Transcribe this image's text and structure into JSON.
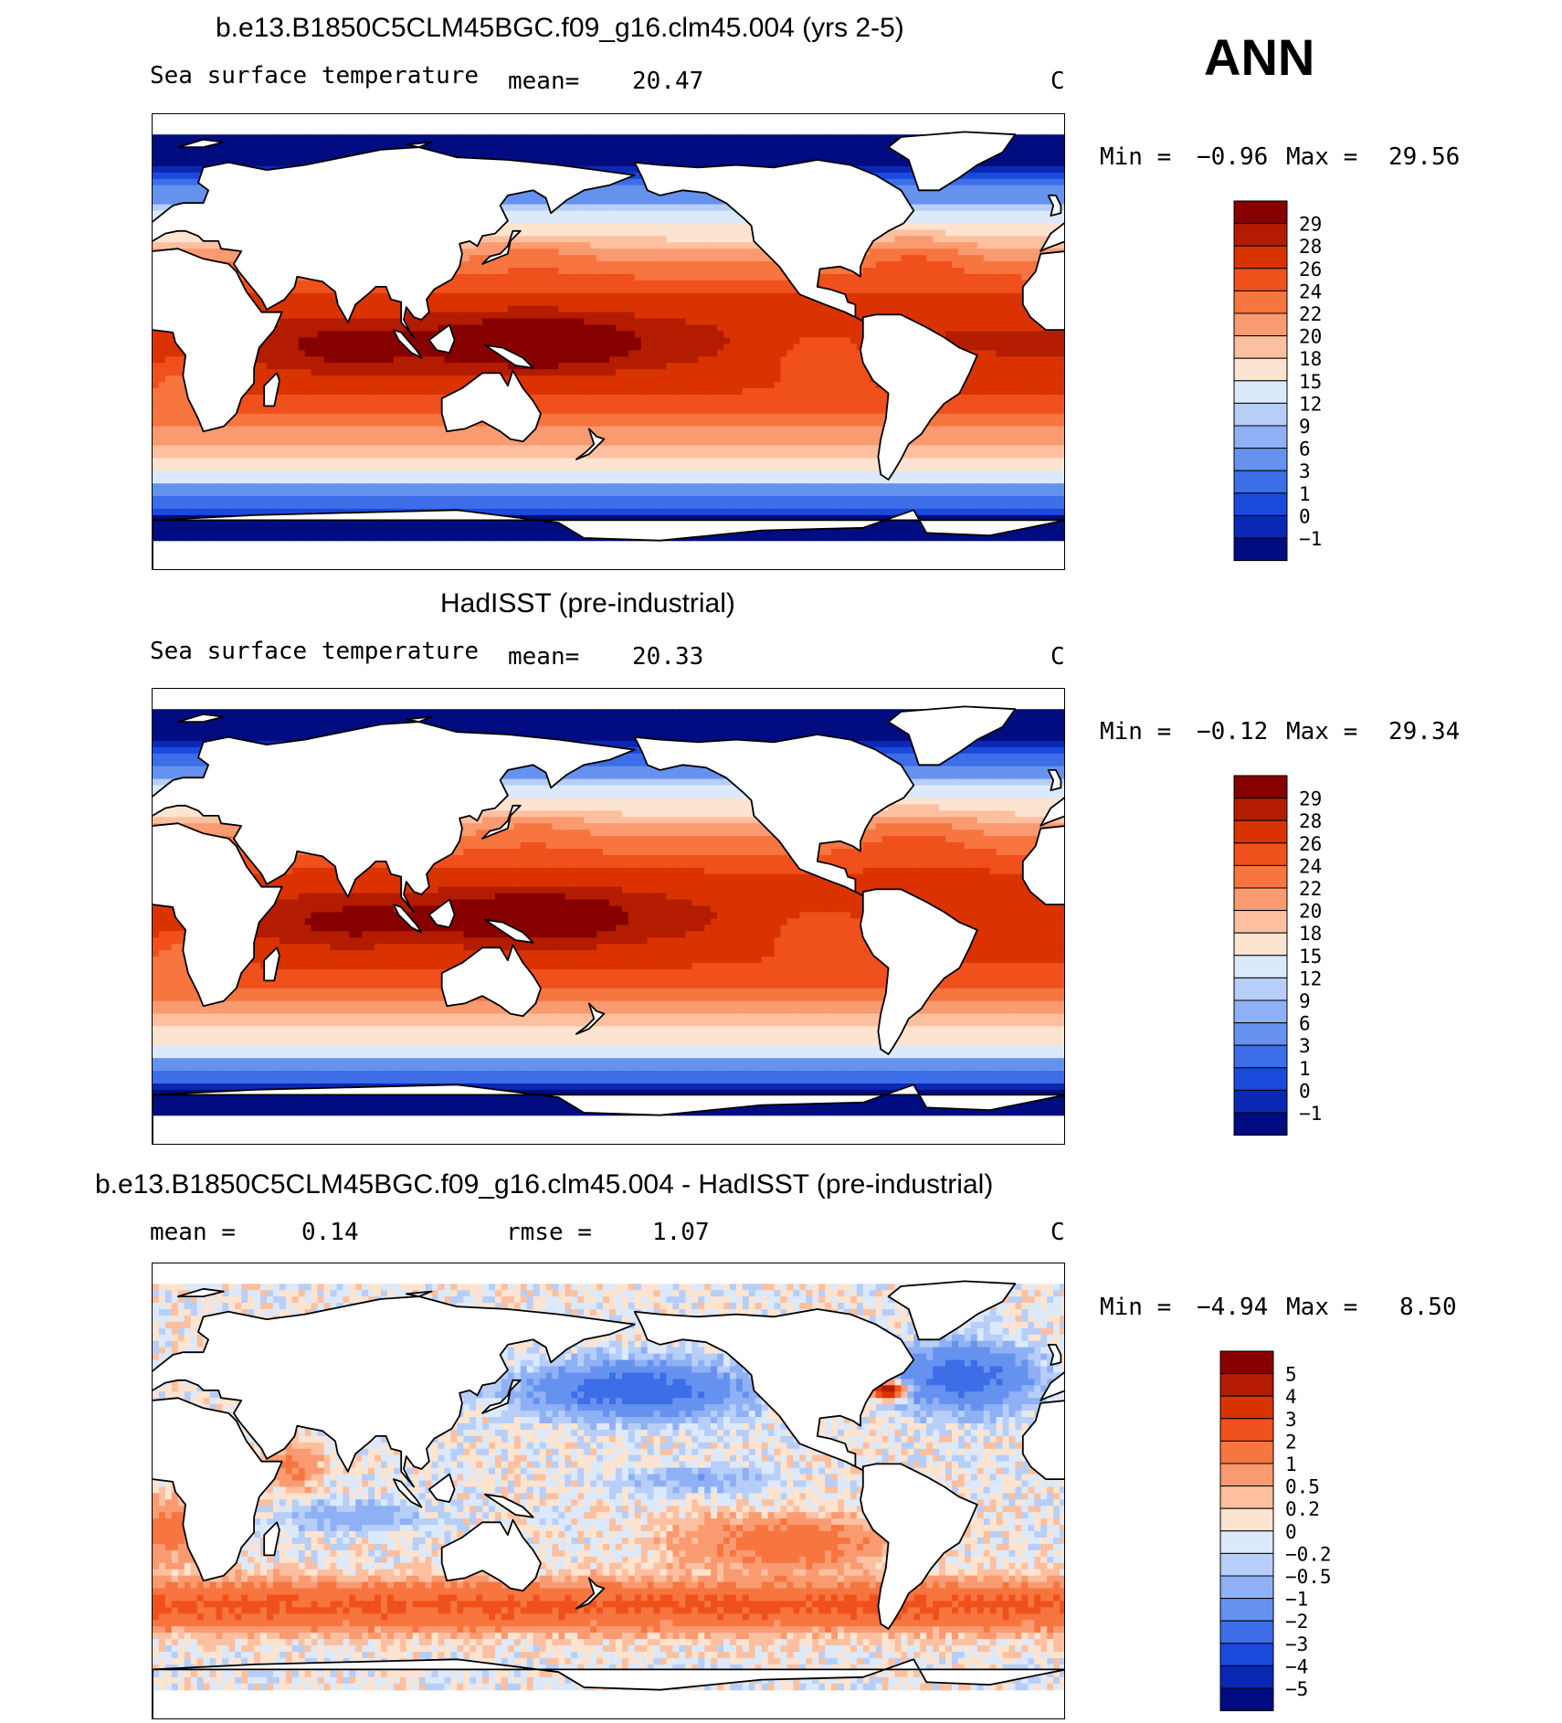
{
  "season": "ANN",
  "units": "C",
  "panels": [
    {
      "title": "b.e13.B1850C5CLM45BGC.f09_g16.clm45.004 (yrs 2-5)",
      "variable": "Sea surface temperature",
      "stat1_label": "mean=",
      "stat1_value": "20.47",
      "units": "C",
      "minmax_label_min": "Min =",
      "min": "−0.96",
      "minmax_label_max": "Max =",
      "max": "29.56",
      "legend": [
        "29",
        "28",
        "26",
        "24",
        "22",
        "20",
        "18",
        "15",
        "12",
        "9",
        "6",
        "3",
        "1",
        "0",
        "−1"
      ]
    },
    {
      "title": "HadISST (pre-industrial)",
      "variable": "Sea surface temperature",
      "stat1_label": "mean=",
      "stat1_value": "20.33",
      "units": "C",
      "minmax_label_min": "Min =",
      "min": "−0.12",
      "minmax_label_max": "Max =",
      "max": "29.34",
      "legend": [
        "29",
        "28",
        "26",
        "24",
        "22",
        "20",
        "18",
        "15",
        "12",
        "9",
        "6",
        "3",
        "1",
        "0",
        "−1"
      ]
    },
    {
      "title": "b.e13.B1850C5CLM45BGC.f09_g16.clm45.004 - HadISST (pre-industrial)",
      "stat1_label": "mean =",
      "stat1_value": "0.14",
      "stat2_label": "rmse =",
      "stat2_value": "1.07",
      "units": "C",
      "minmax_label_min": "Min =",
      "min": "−4.94",
      "minmax_label_max": "Max =",
      "max": "8.50",
      "legend": [
        "5",
        "4",
        "3",
        "2",
        "1",
        "0.5",
        "0.2",
        "0",
        "−0.2",
        "−0.5",
        "−1",
        "−2",
        "−3",
        "−4",
        "−5"
      ]
    }
  ],
  "colors": {
    "sst_ramp": [
      "#870000",
      "#b31c00",
      "#d93300",
      "#f0501c",
      "#f7753f",
      "#fa9a70",
      "#fcc0a0",
      "#fde4d0",
      "#dce9fa",
      "#b6cef8",
      "#8fb0f4",
      "#6692ef",
      "#3d6ee8",
      "#1a4adc",
      "#0a28b4",
      "#000c80"
    ],
    "diff_ramp": [
      "#870000",
      "#b31c00",
      "#d93300",
      "#f0501c",
      "#f7753f",
      "#fa9a70",
      "#fcc0a0",
      "#fde4d0",
      "#dce9fa",
      "#b6cef8",
      "#8fb0f4",
      "#6692ef",
      "#3d6ee8",
      "#1a4adc",
      "#0a28b4",
      "#000c80"
    ]
  }
}
